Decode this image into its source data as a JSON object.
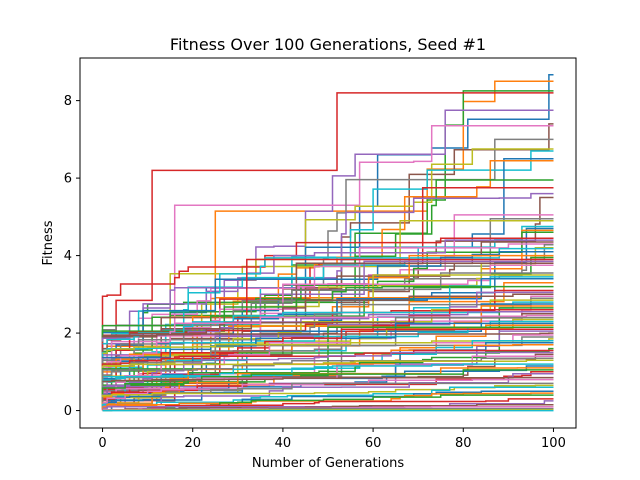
{
  "chart_data": {
    "type": "line",
    "title": "Fitness Over 100 Generations, Seed #1",
    "xlabel": "Number of Generations",
    "ylabel": "Fitness",
    "xlim": [
      -5,
      105
    ],
    "ylim": [
      -0.45,
      9.1
    ],
    "xticks": [
      0,
      20,
      40,
      60,
      80,
      100
    ],
    "yticks": [
      0,
      2,
      4,
      6,
      8
    ],
    "grid": false,
    "legend": "none",
    "colors": [
      "#1f77b4",
      "#ff7f0e",
      "#2ca02c",
      "#d62728",
      "#9467bd",
      "#8c564b",
      "#e377c2",
      "#7f7f7f",
      "#bcbd22",
      "#17becf"
    ],
    "series_count": 100,
    "series_final_values": [
      8.67,
      8.5,
      8.25,
      8.2,
      7.75,
      7.4,
      7.35,
      7.0,
      6.75,
      6.7,
      6.5,
      6.45,
      5.95,
      5.75,
      5.6,
      5.5,
      5.05,
      4.95,
      4.9,
      4.75,
      4.7,
      4.65,
      4.6,
      4.45,
      4.4,
      4.35,
      4.3,
      4.28,
      4.2,
      4.18,
      4.1,
      4.0,
      3.95,
      3.9,
      3.85,
      3.8,
      3.75,
      3.55,
      3.5,
      3.45,
      3.4,
      3.3,
      3.2,
      3.1,
      3.05,
      3.0,
      2.95,
      2.9,
      2.85,
      2.8,
      2.75,
      2.7,
      2.65,
      2.6,
      2.55,
      2.5,
      2.45,
      2.4,
      2.35,
      2.3,
      2.25,
      2.2,
      2.15,
      2.1,
      2.05,
      2.0,
      1.95,
      1.9,
      1.85,
      1.8,
      1.75,
      1.7,
      1.6,
      1.55,
      1.5,
      1.45,
      1.4,
      1.35,
      1.3,
      1.2,
      1.15,
      1.1,
      1.05,
      1.0,
      0.95,
      0.85,
      0.8,
      0.7,
      0.65,
      0.6,
      0.5,
      0.45,
      0.4,
      0.3,
      0.25,
      0.15,
      0.1,
      0.05,
      0.02,
      0.0
    ]
  }
}
